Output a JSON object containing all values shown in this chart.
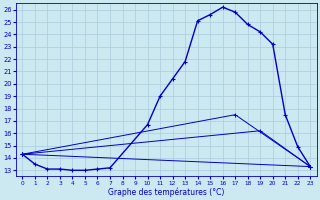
{
  "xlabel": "Graphe des températures (°C)",
  "bg_color": "#cce8f0",
  "grid_color": "#aaccdd",
  "line_color": "#0000cc",
  "xlim": [
    -0.5,
    23.5
  ],
  "ylim": [
    12.5,
    26.5
  ],
  "yticks": [
    13,
    14,
    15,
    16,
    17,
    18,
    19,
    20,
    21,
    22,
    23,
    24,
    25,
    26
  ],
  "xticks": [
    0,
    1,
    2,
    3,
    4,
    5,
    6,
    7,
    8,
    9,
    10,
    11,
    12,
    13,
    14,
    15,
    16,
    17,
    18,
    19,
    20,
    21,
    22,
    23
  ],
  "line1_x": [
    0,
    1,
    2,
    3,
    4,
    5,
    6,
    7,
    10,
    11,
    12,
    13,
    14,
    15,
    16,
    17,
    18,
    19,
    20,
    21,
    22,
    23
  ],
  "line1_y": [
    14.3,
    13.5,
    13.1,
    13.1,
    13.0,
    13.0,
    13.1,
    13.2,
    16.7,
    19.0,
    20.4,
    21.8,
    25.1,
    25.6,
    26.2,
    25.8,
    24.8,
    24.2,
    23.2,
    17.5,
    14.9,
    13.3
  ],
  "line2_x": [
    0,
    23
  ],
  "line2_y": [
    14.3,
    13.3
  ],
  "line3_x": [
    0,
    19,
    23
  ],
  "line3_y": [
    14.3,
    16.2,
    13.3
  ],
  "line4_x": [
    0,
    17,
    23
  ],
  "line4_y": [
    14.3,
    17.5,
    13.3
  ],
  "marker_size": 3,
  "line_width": 1.0
}
